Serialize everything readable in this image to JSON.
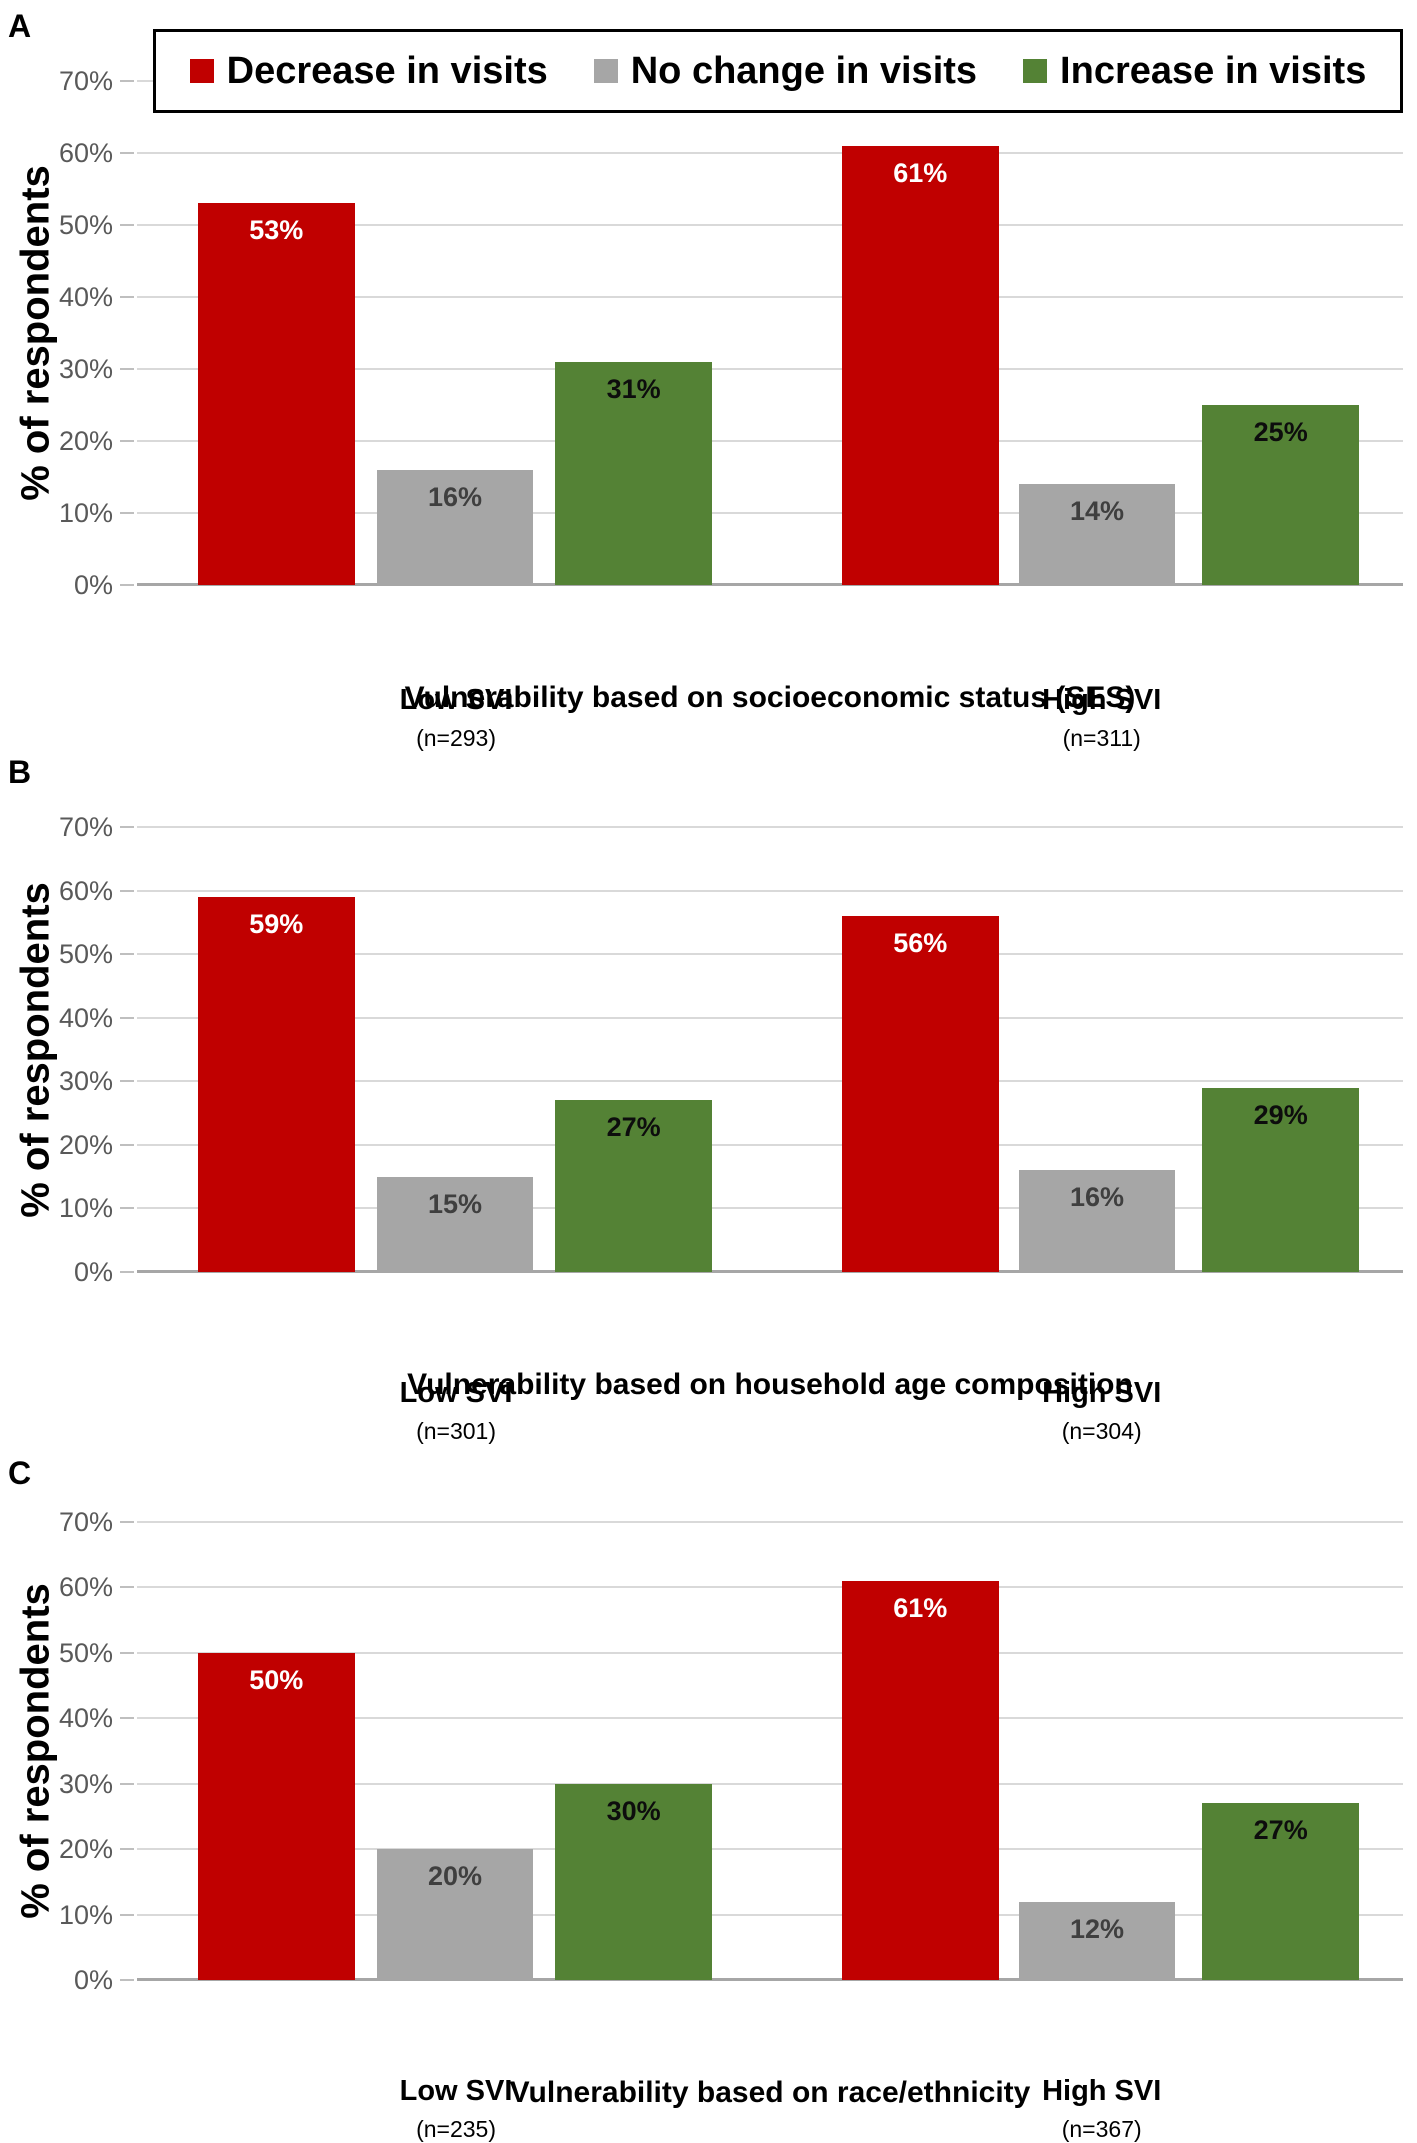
{
  "figure": {
    "y_axis_label": "% of respondents",
    "y_ticks": [
      "0%",
      "10%",
      "20%",
      "30%",
      "40%",
      "50%",
      "60%",
      "70%"
    ],
    "y_max": 70,
    "grid": "horizontal gridlines on, legend boxed at top of panel A",
    "legend": [
      {
        "label": "Decrease in visits",
        "color": "#C00000"
      },
      {
        "label": "No change in visits",
        "color": "#A6A6A6"
      },
      {
        "label": "Increase in visits",
        "color": "#548235"
      }
    ]
  },
  "chart_data": [
    {
      "panel": "A",
      "type": "bar",
      "title": "Vulnerability based on socioeconomic status (SES)",
      "xlabel": "Vulnerability based on socioeconomic status (SES)",
      "ylabel": "% of respondents",
      "ylim": [
        0,
        70
      ],
      "categories": [
        "Low SVI",
        "High SVI"
      ],
      "category_ns": [
        "(n=293)",
        "(n=311)"
      ],
      "series": [
        {
          "name": "Decrease in visits",
          "color": "#C00000",
          "label_color": "#ffffff",
          "values": [
            53,
            61
          ]
        },
        {
          "name": "No change in visits",
          "color": "#A6A6A6",
          "label_color": "#3f3f3f",
          "values": [
            16,
            14
          ]
        },
        {
          "name": "Increase in visits",
          "color": "#548235",
          "label_color": "#0d0d0d",
          "values": [
            31,
            25
          ]
        }
      ]
    },
    {
      "panel": "B",
      "type": "bar",
      "title": "Vulnerability based on household age composition",
      "xlabel": "Vulnerability based on household age composition",
      "ylabel": "% of respondents",
      "ylim": [
        0,
        70
      ],
      "categories": [
        "Low SVI",
        "High SVI"
      ],
      "category_ns": [
        "(n=301)",
        "(n=304)"
      ],
      "series": [
        {
          "name": "Decrease in visits",
          "color": "#C00000",
          "label_color": "#ffffff",
          "values": [
            59,
            56
          ]
        },
        {
          "name": "No change in visits",
          "color": "#A6A6A6",
          "label_color": "#3f3f3f",
          "values": [
            15,
            16
          ]
        },
        {
          "name": "Increase in visits",
          "color": "#548235",
          "label_color": "#0d0d0d",
          "values": [
            27,
            29
          ]
        }
      ]
    },
    {
      "panel": "C",
      "type": "bar",
      "title": "Vulnerability based on race/ethnicity",
      "xlabel": "Vulnerability based on race/ethnicity",
      "ylabel": "% of respondents",
      "ylim": [
        0,
        70
      ],
      "categories": [
        "Low SVI",
        "High SVI"
      ],
      "category_ns": [
        "(n=235)",
        "(n=367)"
      ],
      "series": [
        {
          "name": "Decrease in visits",
          "color": "#C00000",
          "label_color": "#ffffff",
          "values": [
            50,
            61
          ]
        },
        {
          "name": "No change in visits",
          "color": "#A6A6A6",
          "label_color": "#3f3f3f",
          "values": [
            20,
            12
          ]
        },
        {
          "name": "Increase in visits",
          "color": "#548235",
          "label_color": "#0d0d0d",
          "values": [
            30,
            27
          ]
        }
      ]
    }
  ]
}
